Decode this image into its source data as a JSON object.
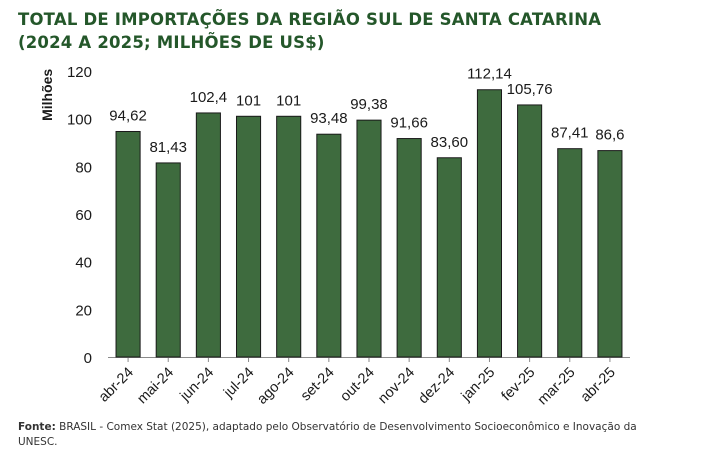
{
  "title": "TOTAL DE IMPORTAÇÕES DA REGIÃO SUL DE SANTA CATARINA (2024 A 2025; MILHÕES DE US$)",
  "source": {
    "label": "Fonte:",
    "text": "BRASIL - Comex Stat (2025), adaptado pelo Observatório de Desenvolvimento Socioeconômico e Inovação da UNESC."
  },
  "colors": {
    "bar": "#3e6b3e",
    "bar_stroke": "#1a1a1a",
    "title": "#24572a"
  },
  "chart_data": {
    "type": "bar",
    "title": "TOTAL DE IMPORTAÇÕES DA REGIÃO SUL DE SANTA CATARINA (2024 A 2025; MILHÕES DE US$)",
    "xlabel": "",
    "ylabel": "Milhões",
    "ylim": [
      0,
      120
    ],
    "yticks": [
      0,
      20,
      40,
      60,
      80,
      100,
      120
    ],
    "grid": false,
    "categories": [
      "abr-24",
      "mai-24",
      "jun-24",
      "jul-24",
      "ago-24",
      "set-24",
      "out-24",
      "nov-24",
      "dez-24",
      "jan-25",
      "fev-25",
      "mar-25",
      "abr-25"
    ],
    "values": [
      94.62,
      81.43,
      102.4,
      101,
      101,
      93.48,
      99.38,
      91.66,
      83.6,
      112.14,
      105.76,
      87.41,
      86.6
    ],
    "data_labels": [
      "94,62",
      "81,43",
      "102,4",
      "101",
      "101",
      "93,48",
      "99,38",
      "91,66",
      "83,60",
      "112,14",
      "105,76",
      "87,41",
      "86,6"
    ]
  }
}
